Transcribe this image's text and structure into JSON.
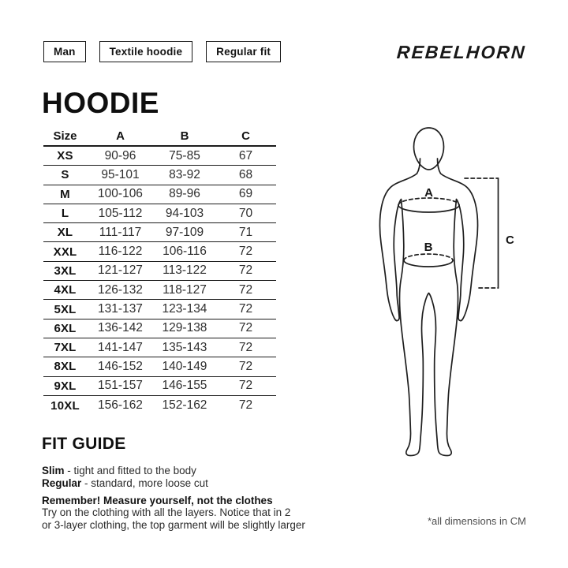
{
  "tags": [
    {
      "label": "Man"
    },
    {
      "label": "Textile hoodie"
    },
    {
      "label": "Regular fit"
    }
  ],
  "brand": {
    "logo_text": "REBELHORN"
  },
  "title": "HOODIE",
  "size_table": {
    "headers": [
      "Size",
      "A",
      "B",
      "C"
    ],
    "rows": [
      [
        "XS",
        "90-96",
        "75-85",
        "67"
      ],
      [
        "S",
        "95-101",
        "83-92",
        "68"
      ],
      [
        "M",
        "100-106",
        "89-96",
        "69"
      ],
      [
        "L",
        "105-112",
        "94-103",
        "70"
      ],
      [
        "XL",
        "111-117",
        "97-109",
        "71"
      ],
      [
        "XXL",
        "116-122",
        "106-116",
        "72"
      ],
      [
        "3XL",
        "121-127",
        "113-122",
        "72"
      ],
      [
        "4XL",
        "126-132",
        "118-127",
        "72"
      ],
      [
        "5XL",
        "131-137",
        "123-134",
        "72"
      ],
      [
        "6XL",
        "136-142",
        "129-138",
        "72"
      ],
      [
        "7XL",
        "141-147",
        "135-143",
        "72"
      ],
      [
        "8XL",
        "146-152",
        "140-149",
        "72"
      ],
      [
        "9XL",
        "151-157",
        "146-155",
        "72"
      ],
      [
        "10XL",
        "156-162",
        "152-162",
        "72"
      ]
    ]
  },
  "figure": {
    "label_a": "A",
    "label_b": "B",
    "label_c": "C"
  },
  "fit_guide": {
    "heading": "FIT GUIDE",
    "items": [
      {
        "term": "Slim",
        "desc": "- tight and fitted to the body"
      },
      {
        "term": "Regular",
        "desc": "- standard, more loose cut"
      }
    ],
    "note": {
      "title": "Remember! Measure yourself, not the clothes",
      "line1": "Try on the clothing with all the layers. Notice that in 2",
      "line2": "or 3-layer clothing, the top garment will be slightly larger"
    }
  },
  "footnote": "*all dimensions in CM",
  "colors": {
    "ink": "#131313",
    "line": "#1c1c1c",
    "muted": "#4f4f4f",
    "background": "#ffffff"
  }
}
